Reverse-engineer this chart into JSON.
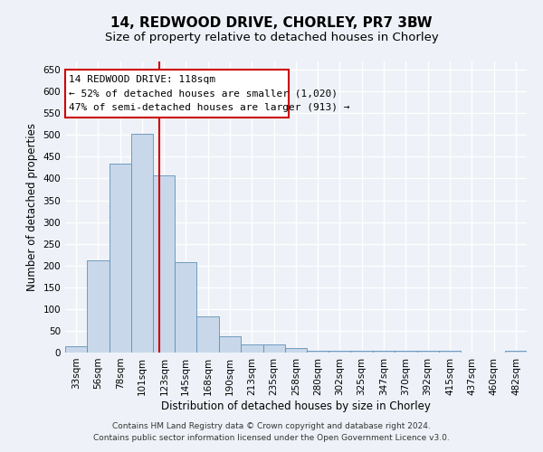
{
  "title_line1": "14, REDWOOD DRIVE, CHORLEY, PR7 3BW",
  "title_line2": "Size of property relative to detached houses in Chorley",
  "xlabel": "Distribution of detached houses by size in Chorley",
  "ylabel": "Number of detached properties",
  "footer_line1": "Contains HM Land Registry data © Crown copyright and database right 2024.",
  "footer_line2": "Contains public sector information licensed under the Open Government Licence v3.0.",
  "annotation_line1": "14 REDWOOD DRIVE: 118sqm",
  "annotation_line2": "← 52% of detached houses are smaller (1,020)",
  "annotation_line3": "47% of semi-detached houses are larger (913) →",
  "bar_color": "#c8d8ea",
  "bar_edge_color": "#6090b8",
  "vline_color": "#cc0000",
  "vline_x": 118,
  "categories": [
    "33sqm",
    "56sqm",
    "78sqm",
    "101sqm",
    "123sqm",
    "145sqm",
    "168sqm",
    "190sqm",
    "213sqm",
    "235sqm",
    "258sqm",
    "280sqm",
    "302sqm",
    "325sqm",
    "347sqm",
    "370sqm",
    "392sqm",
    "415sqm",
    "437sqm",
    "460sqm",
    "482sqm"
  ],
  "bin_edges": [
    22,
    44,
    67,
    89,
    112,
    134,
    156,
    179,
    201,
    224,
    246,
    269,
    291,
    313,
    336,
    358,
    381,
    403,
    426,
    448,
    471,
    493
  ],
  "values": [
    15,
    212,
    435,
    503,
    407,
    207,
    83,
    38,
    18,
    18,
    10,
    5,
    4,
    4,
    4,
    4,
    4,
    4,
    0,
    0,
    4
  ],
  "ylim": [
    0,
    670
  ],
  "yticks": [
    0,
    50,
    100,
    150,
    200,
    250,
    300,
    350,
    400,
    450,
    500,
    550,
    600,
    650
  ],
  "xlim": [
    22,
    493
  ],
  "background_color": "#eef2f8",
  "grid_color": "#ffffff",
  "title1_fontsize": 11,
  "title2_fontsize": 9.5,
  "xlabel_fontsize": 8.5,
  "ylabel_fontsize": 8.5,
  "tick_fontsize": 7.5,
  "annotation_fontsize": 8,
  "footer_fontsize": 6.5
}
